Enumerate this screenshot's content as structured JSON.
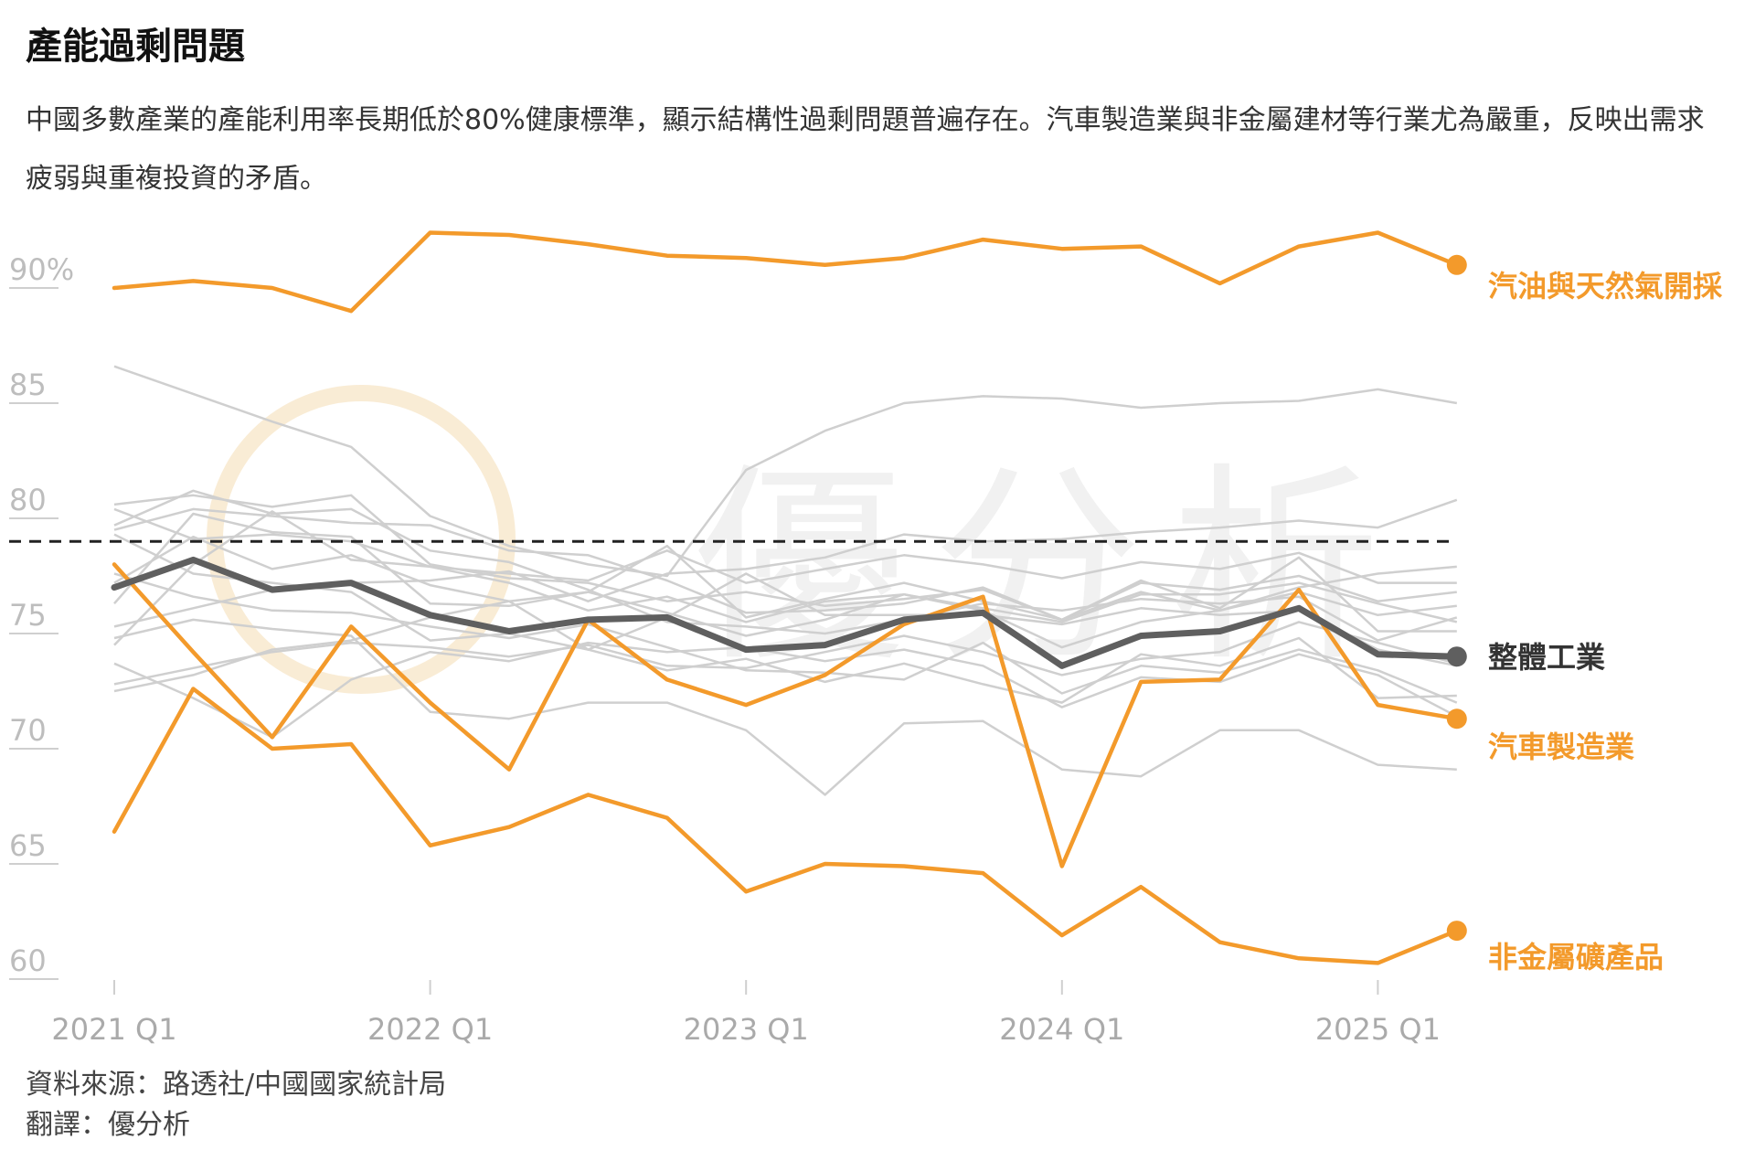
{
  "header": {
    "title": "產能過剩問題",
    "subtitle": "中國多數產業的產能利用率長期低於80%健康標準，顯示結構性過剩問題普遍存在。汽車製造業與非金屬建材等行業尤為嚴重，反映出需求疲弱與重複投資的矛盾。"
  },
  "footer": {
    "source": "資料來源：路透社/中國國家統計局",
    "translation": "翻譯：優分析"
  },
  "watermark": {
    "text": "優分析"
  },
  "colors": {
    "highlight": "#F39A2B",
    "overall": "#5f5f5f",
    "background_series": "#cfcfcf",
    "axis_text": "#bdbdbd",
    "reference_line": "#222222"
  },
  "chart_data": {
    "type": "line",
    "x": [
      "2021 Q1",
      "2021 Q2",
      "2021 Q3",
      "2021 Q4",
      "2022 Q1",
      "2022 Q2",
      "2022 Q3",
      "2022 Q4",
      "2023 Q1",
      "2023 Q2",
      "2023 Q3",
      "2023 Q4",
      "2024 Q1",
      "2024 Q2",
      "2024 Q3",
      "2024 Q4",
      "2025 Q1",
      "2025 Q2"
    ],
    "x_tick_labels": [
      "2021 Q1",
      "2022 Q1",
      "2023 Q1",
      "2024 Q1",
      "2025 Q1"
    ],
    "y_ticks": [
      {
        "value": 90,
        "label": "90%"
      },
      {
        "value": 85,
        "label": "85"
      },
      {
        "value": 80,
        "label": "80"
      },
      {
        "value": 75,
        "label": "75"
      },
      {
        "value": 70,
        "label": "70"
      },
      {
        "value": 65,
        "label": "65"
      },
      {
        "value": 60,
        "label": "60"
      }
    ],
    "ylim": [
      60,
      91.5
    ],
    "reference_line": 79,
    "grid": false,
    "highlighted_series": [
      {
        "name": "汽油與天然氣開採",
        "color": "#F39A2B",
        "values": [
          90.0,
          90.3,
          90.0,
          89.0,
          92.4,
          92.3,
          91.9,
          91.4,
          91.3,
          91.0,
          91.3,
          92.1,
          91.7,
          91.8,
          90.2,
          91.8,
          92.4,
          91.0
        ]
      },
      {
        "name": "汽車製造業",
        "color": "#F39A2B",
        "values": [
          78.0,
          74.2,
          70.5,
          75.3,
          72.0,
          69.1,
          75.6,
          73.0,
          71.9,
          73.2,
          75.4,
          76.6,
          64.9,
          72.9,
          73.0,
          76.9,
          71.9,
          71.3
        ]
      },
      {
        "name": "非金屬礦產品",
        "color": "#F39A2B",
        "values": [
          66.4,
          72.6,
          70.0,
          70.2,
          65.8,
          66.6,
          68.0,
          67.0,
          63.8,
          65.0,
          64.9,
          64.6,
          61.9,
          64.0,
          61.6,
          60.9,
          60.7,
          62.1
        ]
      },
      {
        "name": "整體工業",
        "color": "#5f5f5f",
        "values": [
          77.0,
          78.2,
          76.9,
          77.2,
          75.8,
          75.1,
          75.6,
          75.7,
          74.3,
          74.5,
          75.6,
          75.9,
          73.6,
          74.9,
          75.1,
          76.1,
          74.1,
          74.0
        ]
      }
    ],
    "background_series": [
      [
        86.6,
        85.4,
        84.2,
        83.1,
        80.1,
        78.8,
        78.0,
        77.5,
        82.1,
        83.8,
        85.0,
        85.3,
        85.2,
        84.8,
        85.0,
        85.1,
        85.6,
        85.0
      ],
      [
        79.7,
        81.2,
        80.2,
        80.4,
        78.6,
        78.1,
        76.9,
        75.5,
        75.3,
        75.0,
        75.6,
        76.3,
        76.0,
        76.5,
        76.3,
        76.6,
        74.7,
        75.7
      ],
      [
        80.4,
        79.1,
        79.3,
        79.0,
        77.9,
        77.6,
        77.3,
        78.6,
        77.2,
        77.8,
        78.4,
        78.0,
        77.4,
        78.1,
        77.8,
        78.5,
        77.2,
        77.2
      ],
      [
        80.6,
        81.0,
        80.5,
        81.0,
        78.0,
        77.4,
        77.2,
        76.4,
        76.8,
        76.2,
        76.5,
        76.9,
        75.6,
        76.8,
        76.0,
        77.0,
        77.6,
        77.9
      ],
      [
        79.5,
        80.4,
        80.1,
        79.8,
        79.7,
        78.6,
        78.4,
        77.3,
        75.9,
        76.0,
        76.3,
        77.0,
        75.6,
        77.2,
        76.9,
        77.5,
        76.4,
        76.8
      ],
      [
        77.2,
        79.2,
        77.8,
        78.4,
        77.1,
        76.4,
        76.8,
        75.9,
        74.9,
        75.6,
        76.7,
        76.0,
        74.4,
        75.5,
        76.0,
        76.8,
        75.8,
        76.2
      ],
      [
        74.5,
        78.0,
        80.3,
        78.2,
        77.9,
        77.2,
        76.0,
        76.6,
        75.5,
        76.4,
        76.7,
        76.1,
        75.5,
        76.7,
        76.7,
        77.2,
        76.3,
        75.5
      ],
      [
        76.3,
        80.2,
        79.4,
        79.2,
        76.3,
        76.2,
        76.8,
        78.8,
        75.7,
        76.5,
        77.2,
        76.4,
        75.6,
        77.3,
        76.1,
        78.3,
        75.1,
        75.1
      ],
      [
        79.3,
        77.6,
        77.2,
        76.8,
        74.7,
        75.0,
        74.3,
        73.4,
        73.9,
        72.9,
        73.7,
        72.8,
        72.0,
        74.1,
        73.6,
        74.8,
        72.2,
        72.3
      ],
      [
        77.6,
        76.6,
        76.0,
        75.9,
        75.3,
        74.8,
        75.4,
        74.4,
        73.4,
        73.3,
        73.0,
        74.6,
        72.4,
        73.6,
        73.3,
        74.3,
        73.4,
        72.0
      ],
      [
        73.7,
        72.2,
        70.5,
        73.0,
        74.2,
        73.8,
        74.6,
        74.2,
        74.4,
        73.8,
        74.3,
        73.6,
        71.8,
        73.1,
        72.9,
        74.1,
        73.2,
        71.4
      ],
      [
        72.5,
        73.2,
        74.3,
        74.7,
        75.7,
        76.4,
        74.3,
        75.7,
        77.6,
        75.8,
        75.8,
        75.8,
        75.4,
        76.1,
        75.8,
        76.0,
        74.3,
        73.6
      ],
      [
        74.8,
        75.6,
        75.2,
        74.9,
        71.6,
        71.3,
        72.0,
        72.0,
        70.8,
        68.0,
        71.1,
        71.2,
        69.1,
        68.8,
        70.8,
        70.8,
        69.3,
        69.1
      ],
      [
        72.8,
        73.5,
        74.2,
        74.6,
        74.4,
        74.0,
        74.5,
        73.6,
        73.5,
        74.2,
        74.9,
        74.2,
        73.2,
        73.9,
        74.2,
        75.5,
        74.6,
        73.7
      ],
      [
        75.3,
        76.1,
        76.9,
        77.2,
        77.3,
        77.7,
        76.4,
        77.6,
        77.8,
        78.3,
        79.3,
        79.0,
        79.1,
        79.4,
        79.6,
        79.9,
        79.6,
        80.8
      ]
    ]
  }
}
